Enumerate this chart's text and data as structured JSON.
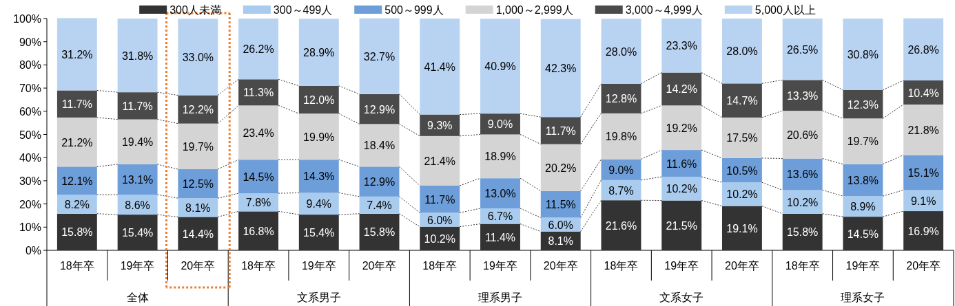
{
  "chart_data": {
    "type": "bar",
    "stacked": true,
    "categories": [
      "18年卒",
      "19年卒",
      "20年卒",
      "18年卒",
      "19年卒",
      "20年卒",
      "18年卒",
      "19年卒",
      "20年卒",
      "18年卒",
      "19年卒",
      "20年卒",
      "18年卒",
      "19年卒",
      "20年卒"
    ],
    "annotations": [
      "全体",
      "文系男子",
      "理系男子",
      "文系女子",
      "理系女子"
    ],
    "ylim": [
      0,
      100
    ],
    "yticks": [
      {
        "value": 0,
        "label": "0%"
      },
      {
        "value": 10,
        "label": "10%"
      },
      {
        "value": 20,
        "label": "20%"
      },
      {
        "value": 30,
        "label": "30%"
      },
      {
        "value": 40,
        "label": "40%"
      },
      {
        "value": 50,
        "label": "50%"
      },
      {
        "value": 60,
        "label": "60%"
      },
      {
        "value": 70,
        "label": "70%"
      },
      {
        "value": 80,
        "label": "80%"
      },
      {
        "value": 90,
        "label": "90%"
      },
      {
        "value": 100,
        "label": "100%"
      }
    ],
    "legend": "top",
    "grid": false,
    "line_style": "dotted",
    "series": [
      {
        "name": "300人未満",
        "color": "#333333",
        "values": [
          15.8,
          15.4,
          14.4,
          16.8,
          15.4,
          15.8,
          10.2,
          11.4,
          8.1,
          21.6,
          21.5,
          19.1,
          15.8,
          14.5,
          16.9
        ],
        "value_labels": [
          "15.8%",
          "15.4%",
          "14.4%",
          "16.8%",
          "15.4%",
          "15.8%",
          "10.2%",
          "11.4%",
          "8.1%",
          "21.6%",
          "21.5%",
          "19.1%",
          "15.8%",
          "14.5%",
          "16.9%"
        ]
      },
      {
        "name": "300～499人",
        "color": "#a9cbee",
        "values": [
          8.2,
          8.6,
          8.1,
          7.8,
          9.4,
          7.4,
          6.0,
          6.7,
          6.0,
          8.7,
          10.2,
          10.2,
          10.2,
          8.9,
          9.1
        ],
        "value_labels": [
          "8.2%",
          "8.6%",
          "8.1%",
          "7.8%",
          "9.4%",
          "7.4%",
          "6.0%",
          "6.7%",
          "6.0%",
          "8.7%",
          "10.2%",
          "10.2%",
          "10.2%",
          "8.9%",
          "9.1%"
        ]
      },
      {
        "name": "500～999人",
        "color": "#6d9eda",
        "values": [
          12.1,
          13.1,
          12.5,
          14.5,
          14.3,
          12.9,
          11.7,
          13.0,
          11.5,
          9.0,
          11.6,
          10.5,
          13.6,
          13.8,
          15.1
        ],
        "value_labels": [
          "12.1%",
          "13.1%",
          "12.5%",
          "14.5%",
          "14.3%",
          "12.9%",
          "11.7%",
          "13.0%",
          "11.5%",
          "9.0%",
          "11.6%",
          "10.5%",
          "13.6%",
          "13.8%",
          "15.1%"
        ]
      },
      {
        "name": "1,000～2,999人",
        "color": "#d4d4d4",
        "values": [
          21.2,
          19.4,
          19.7,
          23.4,
          19.9,
          18.4,
          21.4,
          18.9,
          20.2,
          19.8,
          19.2,
          17.5,
          20.6,
          19.7,
          21.8
        ],
        "value_labels": [
          "21.2%",
          "19.4%",
          "19.7%",
          "23.4%",
          "19.9%",
          "18.4%",
          "21.4%",
          "18.9%",
          "20.2%",
          "19.8%",
          "19.2%",
          "17.5%",
          "20.6%",
          "19.7%",
          "21.8%"
        ]
      },
      {
        "name": "3,000～4,999人",
        "color": "#4a4a4a",
        "values": [
          11.7,
          11.7,
          12.2,
          11.3,
          12.0,
          12.9,
          9.3,
          9.0,
          11.7,
          12.8,
          14.2,
          14.7,
          13.3,
          12.3,
          10.4
        ],
        "value_labels": [
          "11.7%",
          "11.7%",
          "12.2%",
          "11.3%",
          "12.0%",
          "12.9%",
          "9.3%",
          "9.0%",
          "11.7%",
          "12.8%",
          "14.2%",
          "14.7%",
          "13.3%",
          "12.3%",
          "10.4%"
        ]
      },
      {
        "name": "5,000人以上",
        "color": "#b8d3f2",
        "values": [
          31.2,
          31.8,
          33.0,
          26.2,
          28.9,
          32.7,
          41.4,
          40.9,
          42.3,
          28.0,
          23.3,
          28.0,
          26.5,
          30.8,
          26.8
        ],
        "value_labels": [
          "31.2%",
          "31.8%",
          "33.0%",
          "26.2%",
          "28.9%",
          "32.7%",
          "41.4%",
          "40.9%",
          "42.3%",
          "28.0%",
          "23.3%",
          "28.0%",
          "26.5%",
          "30.8%",
          "26.8%"
        ]
      }
    ]
  }
}
